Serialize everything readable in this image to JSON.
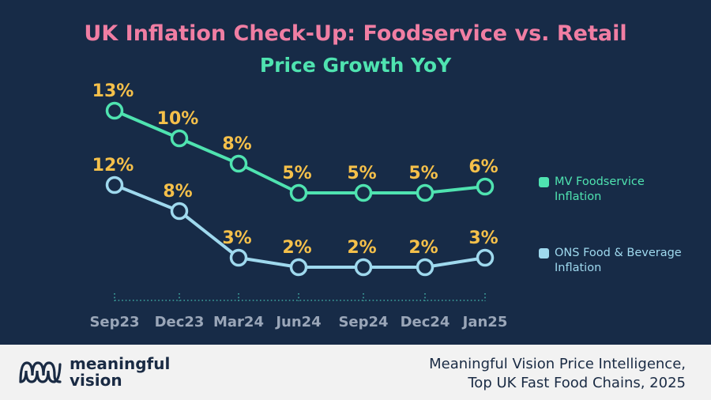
{
  "chart_data": {
    "type": "line",
    "title": "UK Inflation Check-Up: Foodservice vs. Retail",
    "subtitle": "Price Growth YoY",
    "categories": [
      "Sep23",
      "Dec23",
      "Mar24",
      "Jun24",
      "Sep24",
      "Dec24",
      "Jan25"
    ],
    "series": [
      {
        "name": "MV Foodservice Inflation",
        "legend_lines": [
          "MV Foodservice",
          "Inflation"
        ],
        "color": "#4fe3b0",
        "values": [
          13,
          10,
          8,
          5,
          5,
          5,
          6
        ],
        "labels": [
          "13%",
          "10%",
          "8%",
          "5%",
          "5%",
          "5%",
          "6%"
        ]
      },
      {
        "name": "ONS Food & Beverage Inflation",
        "legend_lines": [
          "ONS Food & Beverage",
          "Inflation"
        ],
        "color": "#9fd9ee",
        "values": [
          12,
          8,
          3,
          2,
          2,
          2,
          3
        ],
        "labels": [
          "12%",
          "8%",
          "3%",
          "2%",
          "2%",
          "2%",
          "3%"
        ]
      }
    ],
    "label_color": "#f5c04a",
    "xlabel": "",
    "ylabel": "",
    "grid": false,
    "legend": "right"
  },
  "footer": {
    "logo_lines": [
      "meaningful",
      "vision"
    ],
    "source_lines": [
      "Meaningful Vision Price Intelligence,",
      "Top UK Fast Food Chains, 2025"
    ]
  },
  "colors": {
    "background": "#172b47",
    "footer_background": "#f2f2f2",
    "title": "#f07ea3",
    "subtitle": "#4fe3b0",
    "footer_text": "#1a2b44"
  },
  "icons": {
    "logo": "meaningful-vision-logo-icon"
  }
}
